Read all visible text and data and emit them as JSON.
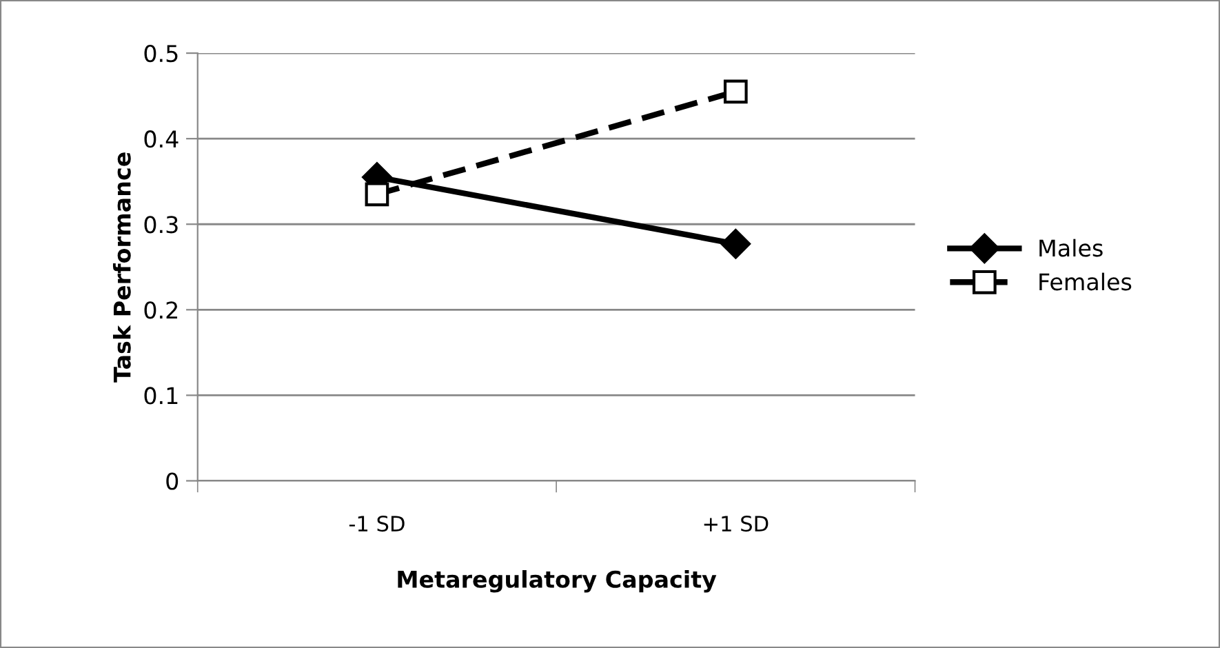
{
  "chart_data": {
    "type": "line",
    "xlabel": "Metaregulatory Capacity",
    "ylabel": "Task Performance",
    "categories": [
      "-1 SD",
      "+1 SD"
    ],
    "series": [
      {
        "name": "Males",
        "color": "#000000",
        "values": [
          0.355,
          0.277
        ],
        "marker": "diamond",
        "line_style": "solid"
      },
      {
        "name": "Females",
        "color": "#000000",
        "values": [
          0.335,
          0.455
        ],
        "marker": "square",
        "line_style": "dashed"
      }
    ],
    "ylim": [
      0,
      0.5
    ],
    "yticks": [
      {
        "value": 0,
        "label": "0"
      },
      0.1,
      0.2,
      0.3,
      0.4,
      0.5
    ],
    "grid": "y",
    "legend": "right"
  }
}
